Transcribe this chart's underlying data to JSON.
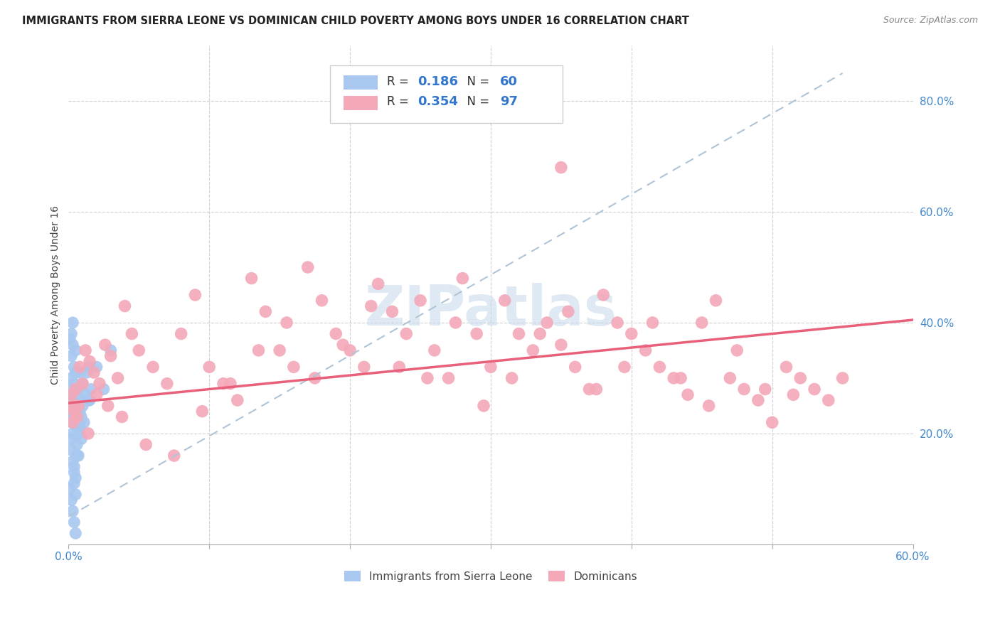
{
  "title": "IMMIGRANTS FROM SIERRA LEONE VS DOMINICAN CHILD POVERTY AMONG BOYS UNDER 16 CORRELATION CHART",
  "source": "Source: ZipAtlas.com",
  "ylabel": "Child Poverty Among Boys Under 16",
  "xlim": [
    0.0,
    0.6
  ],
  "ylim": [
    0.0,
    0.9
  ],
  "xticks": [
    0.0,
    0.1,
    0.2,
    0.3,
    0.4,
    0.5,
    0.6
  ],
  "xtick_labels": [
    "0.0%",
    "",
    "",
    "",
    "",
    "",
    "60.0%"
  ],
  "yticks_right": [
    0.0,
    0.2,
    0.4,
    0.6,
    0.8
  ],
  "ytick_labels_right": [
    "",
    "20.0%",
    "40.0%",
    "60.0%",
    "80.0%"
  ],
  "blue_color": "#a8c8f0",
  "pink_color": "#f4a8b8",
  "pink_line_color": "#e8607a",
  "dashed_line_color": "#b0c4d8",
  "blue_line_color": "#5588cc",
  "watermark": "ZIPatlas",
  "sierra_leone_x": [
    0.001,
    0.001,
    0.002,
    0.002,
    0.002,
    0.003,
    0.003,
    0.003,
    0.004,
    0.004,
    0.004,
    0.005,
    0.005,
    0.005,
    0.006,
    0.006,
    0.007,
    0.007,
    0.008,
    0.008,
    0.009,
    0.009,
    0.01,
    0.01,
    0.011,
    0.012,
    0.013,
    0.014,
    0.015,
    0.016,
    0.001,
    0.002,
    0.003,
    0.003,
    0.004,
    0.005,
    0.006,
    0.007,
    0.008,
    0.009,
    0.001,
    0.002,
    0.003,
    0.004,
    0.005,
    0.001,
    0.002,
    0.002,
    0.003,
    0.003,
    0.004,
    0.004,
    0.005,
    0.006,
    0.007,
    0.008,
    0.02,
    0.025,
    0.03,
    0.015
  ],
  "sierra_leone_y": [
    0.27,
    0.24,
    0.3,
    0.26,
    0.22,
    0.28,
    0.25,
    0.23,
    0.32,
    0.29,
    0.26,
    0.35,
    0.31,
    0.27,
    0.24,
    0.21,
    0.28,
    0.25,
    0.22,
    0.31,
    0.26,
    0.23,
    0.29,
    0.25,
    0.22,
    0.27,
    0.31,
    0.26,
    0.32,
    0.28,
    0.19,
    0.17,
    0.15,
    0.2,
    0.14,
    0.12,
    0.18,
    0.16,
    0.21,
    0.19,
    0.1,
    0.08,
    0.06,
    0.04,
    0.02,
    0.37,
    0.34,
    0.38,
    0.36,
    0.4,
    0.13,
    0.11,
    0.09,
    0.16,
    0.2,
    0.24,
    0.32,
    0.28,
    0.35,
    0.26
  ],
  "dominican_x": [
    0.002,
    0.003,
    0.004,
    0.005,
    0.006,
    0.008,
    0.01,
    0.012,
    0.015,
    0.018,
    0.022,
    0.026,
    0.03,
    0.035,
    0.04,
    0.045,
    0.05,
    0.06,
    0.07,
    0.08,
    0.09,
    0.1,
    0.11,
    0.12,
    0.13,
    0.14,
    0.15,
    0.16,
    0.17,
    0.18,
    0.19,
    0.2,
    0.21,
    0.22,
    0.23,
    0.24,
    0.25,
    0.26,
    0.27,
    0.28,
    0.29,
    0.3,
    0.31,
    0.32,
    0.33,
    0.34,
    0.35,
    0.36,
    0.37,
    0.38,
    0.39,
    0.4,
    0.41,
    0.42,
    0.43,
    0.44,
    0.45,
    0.46,
    0.47,
    0.48,
    0.49,
    0.5,
    0.51,
    0.52,
    0.53,
    0.54,
    0.55,
    0.003,
    0.007,
    0.014,
    0.02,
    0.028,
    0.038,
    0.055,
    0.075,
    0.095,
    0.115,
    0.135,
    0.155,
    0.175,
    0.195,
    0.215,
    0.235,
    0.255,
    0.275,
    0.295,
    0.315,
    0.335,
    0.355,
    0.375,
    0.395,
    0.415,
    0.435,
    0.455,
    0.475,
    0.495,
    0.515
  ],
  "dominican_y": [
    0.27,
    0.25,
    0.24,
    0.28,
    0.23,
    0.32,
    0.29,
    0.35,
    0.33,
    0.31,
    0.29,
    0.36,
    0.34,
    0.3,
    0.43,
    0.38,
    0.35,
    0.32,
    0.29,
    0.38,
    0.45,
    0.32,
    0.29,
    0.26,
    0.48,
    0.42,
    0.35,
    0.32,
    0.5,
    0.44,
    0.38,
    0.35,
    0.32,
    0.47,
    0.42,
    0.38,
    0.44,
    0.35,
    0.3,
    0.48,
    0.38,
    0.32,
    0.44,
    0.38,
    0.35,
    0.4,
    0.36,
    0.32,
    0.28,
    0.45,
    0.4,
    0.38,
    0.35,
    0.32,
    0.3,
    0.27,
    0.4,
    0.44,
    0.3,
    0.28,
    0.26,
    0.22,
    0.32,
    0.3,
    0.28,
    0.26,
    0.3,
    0.22,
    0.25,
    0.2,
    0.27,
    0.25,
    0.23,
    0.18,
    0.16,
    0.24,
    0.29,
    0.35,
    0.4,
    0.3,
    0.36,
    0.43,
    0.32,
    0.3,
    0.4,
    0.25,
    0.3,
    0.38,
    0.42,
    0.28,
    0.32,
    0.4,
    0.3,
    0.25,
    0.35,
    0.28,
    0.27
  ],
  "dominican_outlier_x": [
    0.35
  ],
  "dominican_outlier_y": [
    0.68
  ]
}
